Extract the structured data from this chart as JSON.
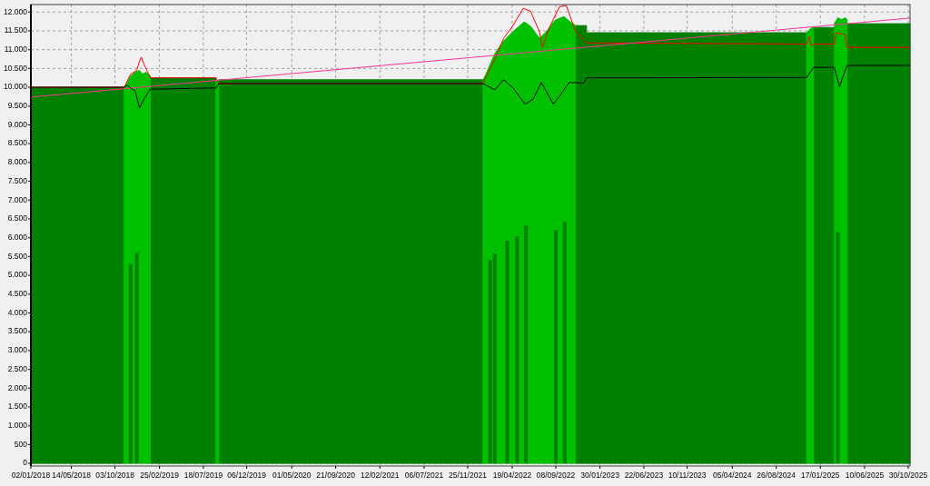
{
  "chart_data": {
    "type": "area",
    "xlim": [
      "2018-01-02",
      "2025-11-05"
    ],
    "ylim": [
      -70,
      12200
    ],
    "xticks": [
      {
        "value": "2018-01-02",
        "label": "02/01/2018"
      },
      {
        "value": "2018-05-14",
        "label": "14/05/2018"
      },
      {
        "value": "2018-10-03",
        "label": "03/10/2018"
      },
      {
        "value": "2019-02-25",
        "label": "25/02/2019"
      },
      {
        "value": "2019-07-18",
        "label": "18/07/2019"
      },
      {
        "value": "2019-12-06",
        "label": "06/12/2019"
      },
      {
        "value": "2020-05-01",
        "label": "01/05/2020"
      },
      {
        "value": "2020-09-21",
        "label": "21/09/2020"
      },
      {
        "value": "2021-02-12",
        "label": "12/02/2021"
      },
      {
        "value": "2021-07-06",
        "label": "06/07/2021"
      },
      {
        "value": "2021-11-25",
        "label": "25/11/2021"
      },
      {
        "value": "2022-04-19",
        "label": "19/04/2022"
      },
      {
        "value": "2022-09-08",
        "label": "08/09/2022"
      },
      {
        "value": "2023-01-30",
        "label": "30/01/2023"
      },
      {
        "value": "2023-06-22",
        "label": "22/06/2023"
      },
      {
        "value": "2023-11-10",
        "label": "10/11/2023"
      },
      {
        "value": "2024-04-05",
        "label": "05/04/2024"
      },
      {
        "value": "2024-08-26",
        "label": "26/08/2024"
      },
      {
        "value": "2025-01-17",
        "label": "17/01/2025"
      },
      {
        "value": "2025-06-10",
        "label": "10/06/2025"
      },
      {
        "value": "2025-10-30",
        "label": "30/10/2025"
      }
    ],
    "yticks": [
      0,
      500,
      {
        "value": 1000,
        "label": "1.000"
      },
      {
        "value": 1500,
        "label": "1.500"
      },
      {
        "value": 2000,
        "label": "2.000"
      },
      {
        "value": 2500,
        "label": "2.500"
      },
      {
        "value": 3000,
        "label": "3.000"
      },
      {
        "value": 3500,
        "label": "3.500"
      },
      {
        "value": 4000,
        "label": "4.000"
      },
      {
        "value": 4500,
        "label": "4.500"
      },
      {
        "value": 5000,
        "label": "5.000"
      },
      {
        "value": 5500,
        "label": "5.500"
      },
      {
        "value": 6000,
        "label": "6.000"
      },
      {
        "value": 6500,
        "label": "6.500"
      },
      {
        "value": 7000,
        "label": "7.000"
      },
      {
        "value": 7500,
        "label": "7.500"
      },
      {
        "value": 8000,
        "label": "8.000"
      },
      {
        "value": 8500,
        "label": "8.500"
      },
      {
        "value": 9000,
        "label": "9.000"
      },
      {
        "value": 9500,
        "label": "9.500"
      },
      {
        "value": 10000,
        "label": "10.000"
      },
      {
        "value": 10500,
        "label": "10.500"
      },
      {
        "value": 11000,
        "label": "11.000"
      },
      {
        "value": 11500,
        "label": "11.500"
      },
      {
        "value": 12000,
        "label": "12.000"
      }
    ],
    "grid": true,
    "series": [
      {
        "color": "#008000",
        "x": [
          "2018-01-02",
          "2018-11-02",
          "2018-11-03",
          "2019-01-26",
          "2019-08-28",
          "2019-08-29",
          "2019-09-06",
          "2022-01-14",
          "2022-01-15",
          "2022-11-11",
          "2022-12-17",
          "2022-12-17",
          "2024-12-03",
          "2024-12-04",
          "2024-12-26",
          "2025-03-04",
          "2025-03-05",
          "2025-04-14",
          "2025-11-05"
        ],
        "values": [
          10000,
          10000,
          null,
          10250,
          10250,
          null,
          10200,
          10200,
          null,
          11640,
          11640,
          11450,
          11450,
          null,
          11590,
          11590,
          null,
          11690,
          11690
        ]
      },
      {
        "color": "#00c000",
        "x": [
          "2018-11-02",
          "2018-11-11",
          "2018-11-23",
          "2018-12-08",
          "2018-12-22",
          "2018-12-31",
          "2019-01-12",
          "2019-01-26",
          "2019-02-01",
          "2019-08-28",
          "2019-09-06",
          "2019-09-10",
          "2022-01-14",
          "2022-01-23",
          "2022-02-21",
          "2022-03-22",
          "2022-04-20",
          "2022-05-28",
          "2022-06-18",
          "2022-07-17",
          "2022-08-07",
          "2022-09-05",
          "2022-10-04",
          "2022-10-22",
          "2022-11-11",
          "2022-11-15",
          "2024-12-03",
          "2024-12-15",
          "2024-12-26",
          "2024-12-30",
          "2025-03-04",
          "2025-03-15",
          "2025-03-27",
          "2025-04-08",
          "2025-04-14"
        ],
        "values": [
          10000,
          10100,
          10300,
          10400,
          10450,
          10350,
          10400,
          10300,
          null,
          10200,
          10150,
          null,
          10200,
          10340,
          10890,
          11230,
          11470,
          11740,
          11620,
          11300,
          11470,
          11780,
          11880,
          11760,
          11640,
          null,
          11450,
          11550,
          11600,
          null,
          11700,
          11850,
          11800,
          11850,
          11800
        ]
      },
      {
        "type": "bar",
        "color": "#008000",
        "x": [
          "2018-11-23",
          "2018-12-13",
          "2022-02-06",
          "2022-02-21",
          "2022-04-03",
          "2022-05-05",
          "2022-06-03",
          "2022-09-08",
          "2022-10-07",
          "2025-03-15"
        ],
        "values": [
          5300,
          5600,
          5410,
          5580,
          5920,
          6040,
          6320,
          6200,
          6420,
          6150
        ]
      },
      {
        "type": "line",
        "color": "#ff0000",
        "x": [
          "2018-01-02",
          "2018-11-02",
          "2018-11-23",
          "2018-12-13",
          "2018-12-22",
          "2018-12-28",
          "2019-01-06",
          "2019-01-15",
          "2019-01-26",
          "2019-08-28",
          "2019-09-06",
          "2022-01-14",
          "2022-02-21",
          "2022-03-22",
          "2022-04-20",
          "2022-05-25",
          "2022-06-18",
          "2022-07-17",
          "2022-07-26",
          "2022-08-20",
          "2022-09-20",
          "2022-10-12",
          "2022-11-11",
          "2022-12-17",
          "2024-12-03",
          "2024-12-12",
          "2024-12-18",
          "2024-12-26",
          "2025-03-04",
          "2025-03-09",
          "2025-04-08",
          "2025-04-14",
          "2025-11-05"
        ],
        "values": [
          10000,
          10000,
          10350,
          10450,
          10700,
          10800,
          10600,
          10450,
          10250,
          10250,
          10100,
          10100,
          10750,
          11300,
          11620,
          12100,
          12020,
          11470,
          11060,
          11620,
          12140,
          12180,
          11490,
          11180,
          11150,
          11350,
          11100,
          11150,
          11150,
          11450,
          11400,
          11060,
          11060
        ]
      },
      {
        "type": "line",
        "color": "#000000",
        "x": [
          "2018-01-02",
          "2018-11-02",
          "2018-11-11",
          "2018-12-08",
          "2018-12-22",
          "2019-01-06",
          "2019-01-26",
          "2019-08-28",
          "2019-09-06",
          "2022-01-14",
          "2022-02-21",
          "2022-03-22",
          "2022-04-20",
          "2022-05-31",
          "2022-06-27",
          "2022-07-23",
          "2022-08-31",
          "2022-09-26",
          "2022-10-22",
          "2022-12-08",
          "2022-12-17",
          "2024-12-03",
          "2024-12-26",
          "2025-03-04",
          "2025-03-20",
          "2025-04-14",
          "2025-11-05"
        ],
        "values": [
          10000,
          10000,
          10050,
          9900,
          9450,
          9700,
          9950,
          9980,
          10100,
          10100,
          9930,
          10200,
          10000,
          9550,
          9690,
          10130,
          9550,
          9830,
          10130,
          10110,
          10250,
          10260,
          10530,
          10530,
          10020,
          10580,
          10580
        ]
      },
      {
        "type": "line",
        "color": "#ff3399",
        "x": [
          "2018-01-02",
          "2025-11-05"
        ],
        "values": [
          9740,
          11840
        ]
      }
    ]
  }
}
